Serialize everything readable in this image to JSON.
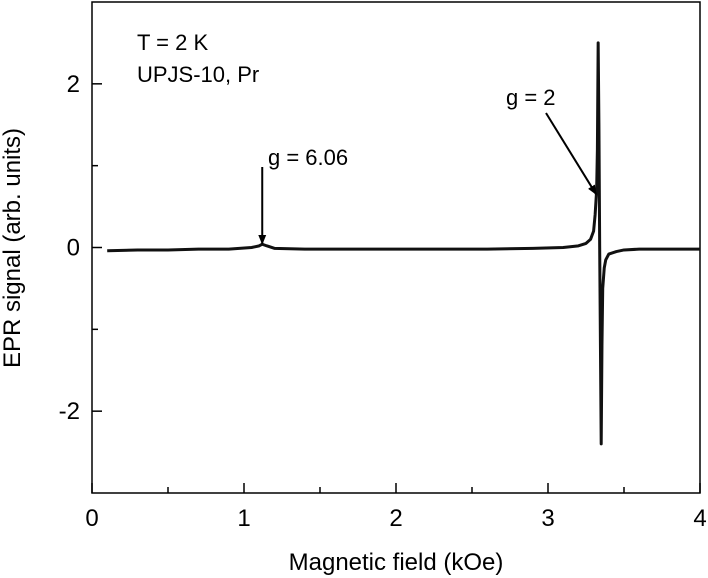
{
  "chart_data": {
    "type": "line",
    "xlabel": "Magnetic field (kOe)",
    "ylabel": "EPR signal (arb. units)",
    "xlim": [
      0,
      4
    ],
    "ylim": [
      -3,
      3
    ],
    "x_ticks": [
      0,
      1,
      2,
      3,
      4
    ],
    "x_tick_labels": [
      "0",
      "1",
      "2",
      "3",
      "4"
    ],
    "y_ticks": [
      -2,
      0,
      2
    ],
    "y_tick_labels": [
      "-2",
      "0",
      "2"
    ],
    "grid": false,
    "legend": "none",
    "line_color": "#111111",
    "series": [
      {
        "x": [
          0.1,
          0.3,
          0.5,
          0.7,
          0.9,
          1.05,
          1.1,
          1.12,
          1.15,
          1.2,
          1.4,
          1.7,
          2.0,
          2.3,
          2.6,
          2.9,
          3.1,
          3.2,
          3.25,
          3.28,
          3.3,
          3.31,
          3.32,
          3.325,
          3.33,
          3.335,
          3.34,
          3.345,
          3.35,
          3.355,
          3.36,
          3.37,
          3.38,
          3.4,
          3.45,
          3.5,
          3.6,
          3.8,
          4.0
        ],
        "y": [
          -0.04,
          -0.03,
          -0.03,
          -0.02,
          -0.02,
          0.0,
          0.02,
          0.04,
          0.02,
          -0.01,
          -0.02,
          -0.02,
          -0.02,
          -0.02,
          -0.02,
          -0.01,
          0.0,
          0.02,
          0.05,
          0.1,
          0.2,
          0.4,
          0.7,
          1.2,
          2.5,
          1.5,
          0.0,
          -1.2,
          -2.4,
          -1.2,
          -0.5,
          -0.25,
          -0.15,
          -0.08,
          -0.05,
          -0.03,
          -0.02,
          -0.02,
          -0.02
        ]
      }
    ],
    "annotations": [
      {
        "text": "T = 2 K"
      },
      {
        "text": "UPJS-10, Pr"
      },
      {
        "text": "g = 6.06",
        "arrow_to": [
          1.12,
          0.02
        ]
      },
      {
        "text": "g = 2",
        "arrow_to": [
          3.33,
          0.65
        ]
      }
    ]
  }
}
